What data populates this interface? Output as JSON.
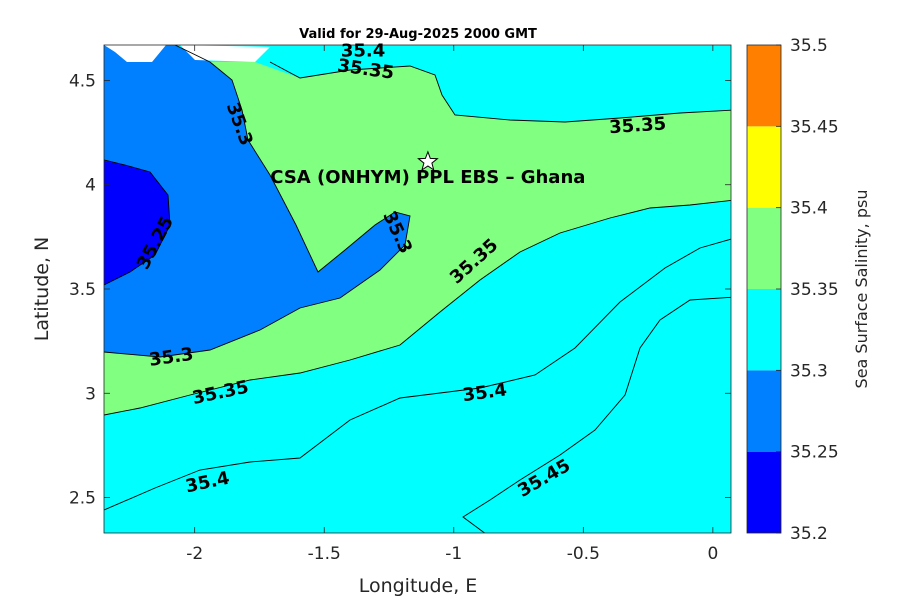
{
  "chart_data": {
    "type": "filled-contour",
    "title": "Valid for 29-Aug-2025 2000 GMT",
    "xlabel": "Longitude, E",
    "ylabel": "Latitude, N",
    "xlim": [
      -2.35,
      0.07
    ],
    "ylim": [
      2.33,
      4.67
    ],
    "x_ticks": [
      -2,
      -1.5,
      -1,
      -0.5,
      0
    ],
    "x_tick_labels": [
      "-2",
      "-1.5",
      "-1",
      "-0.5",
      "0"
    ],
    "y_ticks": [
      2.5,
      3,
      3.5,
      4,
      4.5
    ],
    "y_tick_labels": [
      "2.5",
      "3",
      "3.5",
      "4",
      "4.5"
    ],
    "colorbar": {
      "label": "Sea Surface Salinity, psu",
      "levels": [
        35.2,
        35.25,
        35.3,
        35.35,
        35.4,
        35.45,
        35.5
      ],
      "tick_labels": [
        "35.2",
        "35.25",
        "35.3",
        "35.35",
        "35.4",
        "35.45",
        "35.5"
      ],
      "colors": [
        "#0000ff",
        "#0080ff",
        "#00ffff",
        "#80ff80",
        "#ffff00",
        "#ff8000"
      ]
    },
    "contour_labels": [
      {
        "text": "35.4",
        "lon": -1.35,
        "lat": 4.64,
        "angle": 0
      },
      {
        "text": "35.35",
        "lon": -1.34,
        "lat": 4.55,
        "angle": 8
      },
      {
        "text": "35.35",
        "lon": -0.29,
        "lat": 4.28,
        "angle": -4
      },
      {
        "text": "35.3",
        "lon": -1.83,
        "lat": 4.29,
        "angle": 70
      },
      {
        "text": "35.25",
        "lon": -2.15,
        "lat": 3.72,
        "angle": -62
      },
      {
        "text": "35.3",
        "lon": -1.22,
        "lat": 3.77,
        "angle": 65
      },
      {
        "text": "35.35",
        "lon": -0.92,
        "lat": 3.63,
        "angle": -42
      },
      {
        "text": "35.3",
        "lon": -2.09,
        "lat": 3.17,
        "angle": -8
      },
      {
        "text": "35.35",
        "lon": -1.9,
        "lat": 3.0,
        "angle": -12
      },
      {
        "text": "35.4",
        "lon": -0.88,
        "lat": 3.0,
        "angle": -8
      },
      {
        "text": "35.4",
        "lon": -1.95,
        "lat": 2.57,
        "angle": -12
      },
      {
        "text": "35.45",
        "lon": -0.65,
        "lat": 2.59,
        "angle": -30
      }
    ],
    "site": {
      "name": "CSA (ONHYM) PPL EBS  – Ghana",
      "lon": -1.1,
      "lat": 4.11,
      "marker": "star"
    }
  }
}
